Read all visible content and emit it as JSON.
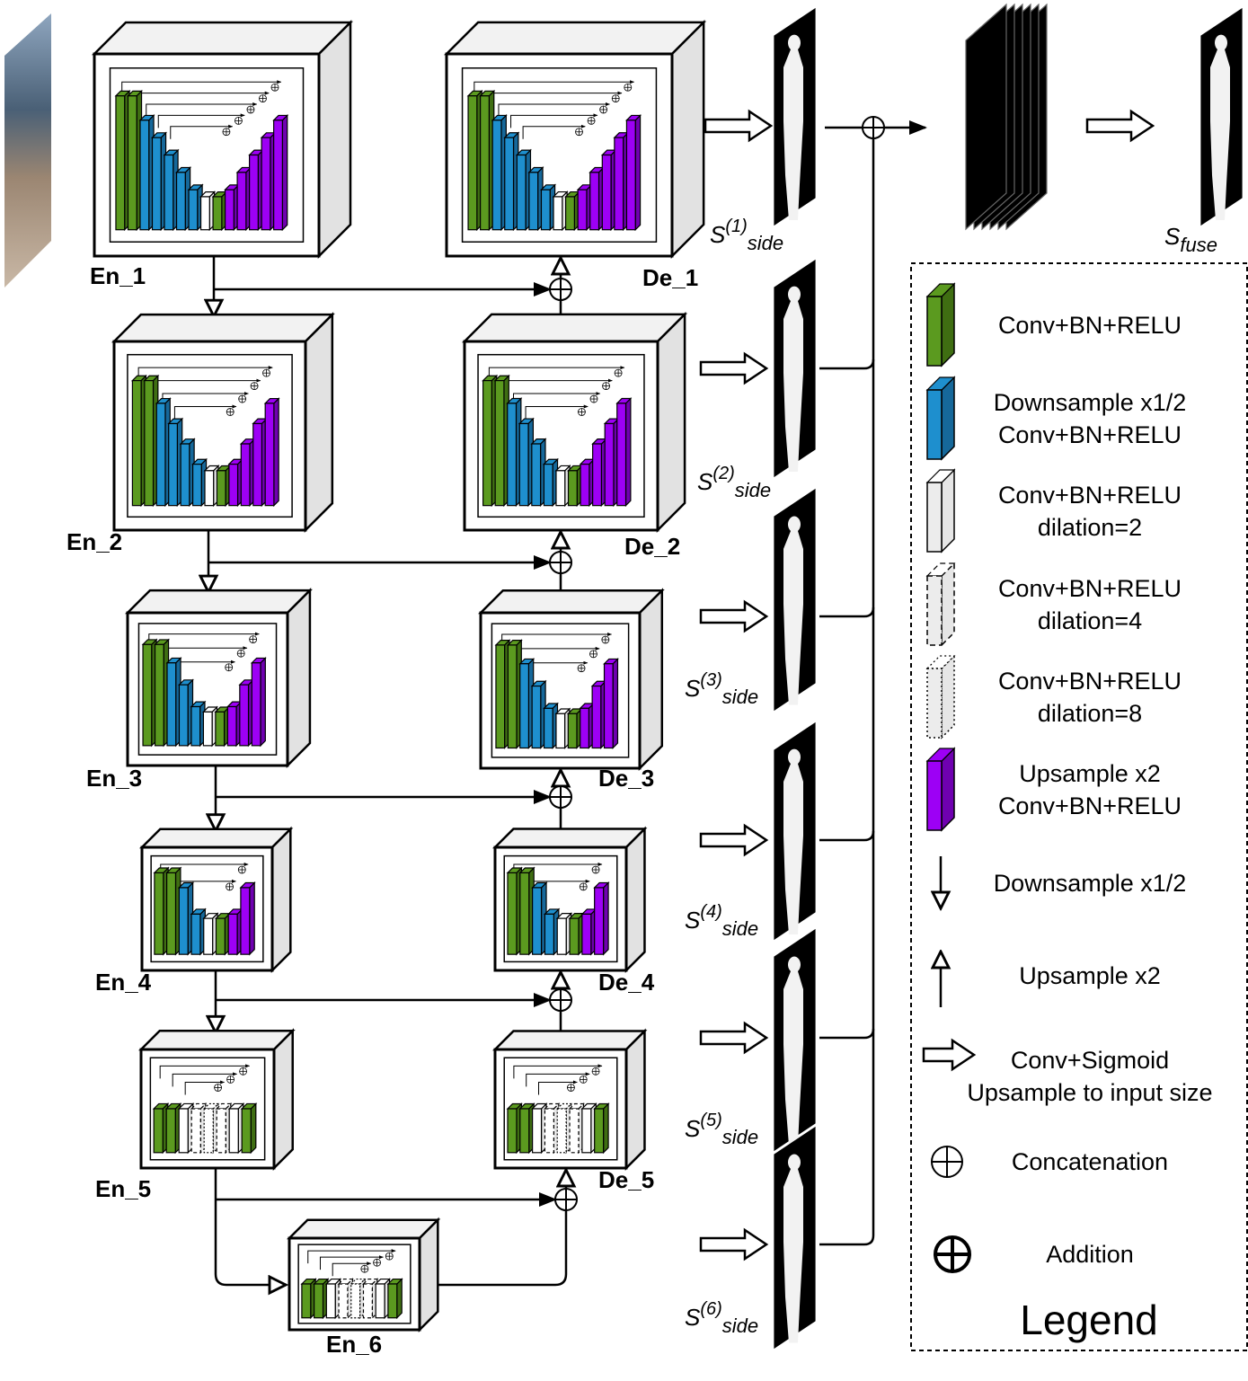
{
  "encoders": [
    {
      "label": "En_1"
    },
    {
      "label": "En_2"
    },
    {
      "label": "En_3"
    },
    {
      "label": "En_4"
    },
    {
      "label": "En_5"
    },
    {
      "label": "En_6"
    }
  ],
  "decoders": [
    {
      "label": "De_1"
    },
    {
      "label": "De_2"
    },
    {
      "label": "De_3"
    },
    {
      "label": "De_4"
    },
    {
      "label": "De_5"
    }
  ],
  "side_outputs": [
    {
      "base": "S",
      "sup": "(1)",
      "sub": "side"
    },
    {
      "base": "S",
      "sup": "(2)",
      "sub": "side"
    },
    {
      "base": "S",
      "sup": "(3)",
      "sub": "side"
    },
    {
      "base": "S",
      "sup": "(4)",
      "sub": "side"
    },
    {
      "base": "S",
      "sup": "(5)",
      "sub": "side"
    },
    {
      "base": "S",
      "sup": "(6)",
      "sub": "side"
    }
  ],
  "fused_output": {
    "base": "S",
    "sub": "fuse"
  },
  "legend": {
    "title": "Legend",
    "items": [
      {
        "lines": [
          "Conv+BN+RELU"
        ]
      },
      {
        "lines": [
          "Downsample x1/2",
          "Conv+BN+RELU"
        ]
      },
      {
        "lines": [
          "Conv+BN+RELU",
          "dilation=2"
        ]
      },
      {
        "lines": [
          "Conv+BN+RELU",
          "dilation=4"
        ]
      },
      {
        "lines": [
          "Conv+BN+RELU",
          "dilation=8"
        ]
      },
      {
        "lines": [
          "Upsample x2",
          "Conv+BN+RELU"
        ]
      },
      {
        "lines": [
          "Downsample x1/2"
        ]
      },
      {
        "lines": [
          "Upsample x2"
        ]
      },
      {
        "lines": [
          "Conv+Sigmoid",
          "Upsample to input size"
        ]
      },
      {
        "lines": [
          "Concatenation"
        ]
      },
      {
        "lines": [
          "Addition"
        ]
      }
    ]
  }
}
